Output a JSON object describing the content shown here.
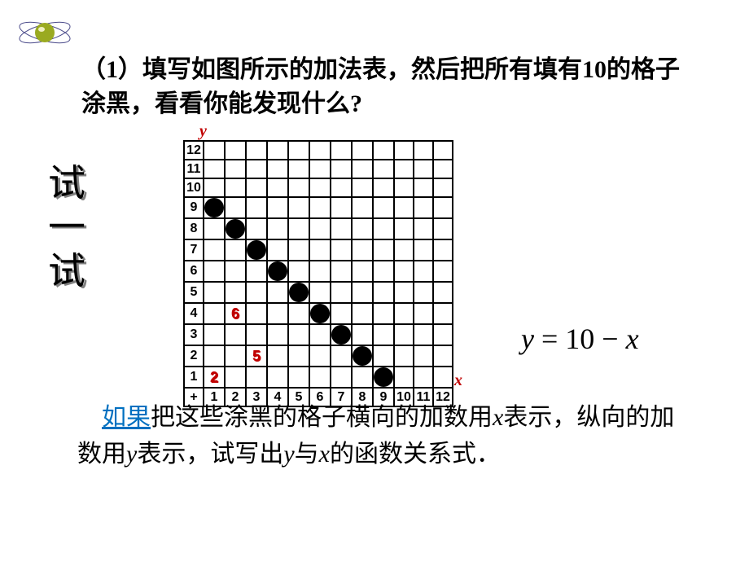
{
  "logo": {
    "sphere_color": "#9aaa20",
    "ring_color": "#4a4a8a",
    "highlight_color": "#f0f0c0"
  },
  "question": {
    "text": "（1）填写如图所示的加法表，然后把所有填有10的格子涂黑，看看你能发现什么?"
  },
  "vertical_label": {
    "text": "试一试",
    "color": "#000000",
    "shadow_color": "#808080"
  },
  "axes": {
    "x_label": "x",
    "y_label": "y",
    "label_color": "#c00000"
  },
  "grid": {
    "rows": 12,
    "cols": 12,
    "plus_symbol": "+",
    "row_headers": [
      12,
      11,
      10,
      9,
      8,
      7,
      6,
      5,
      4,
      3,
      2,
      1
    ],
    "col_headers": [
      1,
      2,
      3,
      4,
      5,
      6,
      7,
      8,
      9,
      10,
      11,
      12
    ],
    "black_dots": [
      {
        "row": 9,
        "col": 1
      },
      {
        "row": 8,
        "col": 2
      },
      {
        "row": 7,
        "col": 3
      },
      {
        "row": 6,
        "col": 4
      },
      {
        "row": 5,
        "col": 5
      },
      {
        "row": 4,
        "col": 6
      },
      {
        "row": 3,
        "col": 7
      },
      {
        "row": 2,
        "col": 8
      },
      {
        "row": 1,
        "col": 9
      }
    ],
    "red_numbers": [
      {
        "row": 4,
        "col": 2,
        "value": 6
      },
      {
        "row": 2,
        "col": 3,
        "value": 5
      },
      {
        "row": 1,
        "col": 1,
        "value": 2
      }
    ],
    "border_color": "#000000",
    "cell_bg": "#ffffff"
  },
  "equation": {
    "lhs": "y",
    "equals": " = ",
    "rhs_const": "10",
    "minus": " − ",
    "rhs_var": "x"
  },
  "bottom": {
    "link_text": "如果",
    "text_after_link": "把这些涂黑的格子横向的加数用",
    "var1": "x",
    "text_mid": "表示，纵向的加数用",
    "var2": "y",
    "text_mid2": "表示，试写出",
    "var3": "y",
    "text_mid3": "与",
    "var4": "x",
    "text_end": "的函数关系式．"
  }
}
